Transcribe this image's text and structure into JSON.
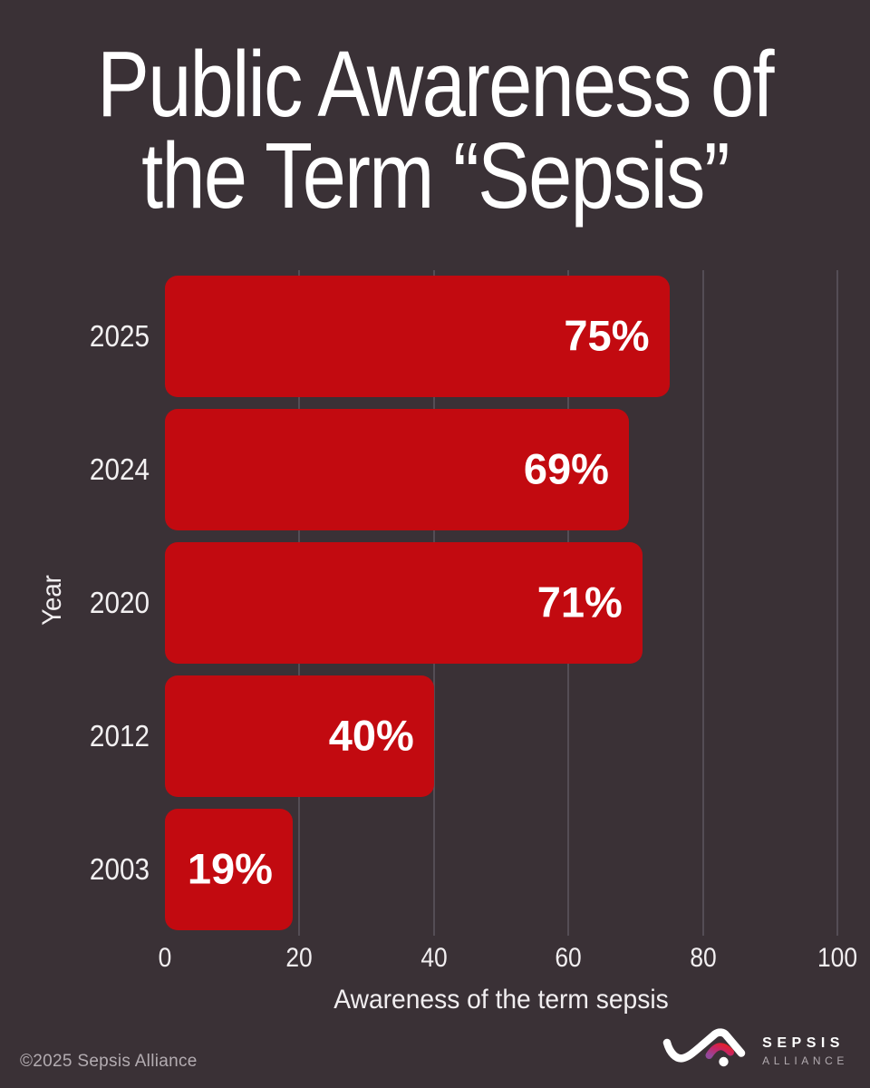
{
  "title": {
    "line1": "Public Awareness of",
    "line2": "the Term “Sepsis”"
  },
  "chart_data": {
    "type": "bar",
    "orientation": "horizontal",
    "categories": [
      "2025",
      "2024",
      "2020",
      "2012",
      "2003"
    ],
    "values": [
      75,
      69,
      71,
      40,
      19
    ],
    "value_labels": [
      "75%",
      "69%",
      "71%",
      "40%",
      "19%"
    ],
    "title": "Public Awareness of the Term “Sepsis”",
    "xlabel": "Awareness of the term sepsis",
    "ylabel": "Year",
    "xlim": [
      0,
      100
    ],
    "xticks": [
      0,
      20,
      40,
      60,
      80,
      100
    ],
    "grid": true,
    "legend": "none",
    "bar_color": "#c20a10",
    "value_label_color": "#ffffff"
  },
  "footer": {
    "copyright": "©2025 Sepsis Alliance",
    "logo": {
      "line1": "SEPSIS",
      "line2": "ALLIANCE",
      "icon": "sepsis-alliance-wave-logo",
      "gradient_start": "#93499b",
      "gradient_mid": "#c62566",
      "gradient_end": "#e5202c"
    }
  },
  "colors": {
    "background": "#3a3136",
    "text_primary": "#ffffff",
    "text_secondary": "#f1eef0",
    "text_muted": "#b3acb1",
    "gridline": "#544d55"
  }
}
